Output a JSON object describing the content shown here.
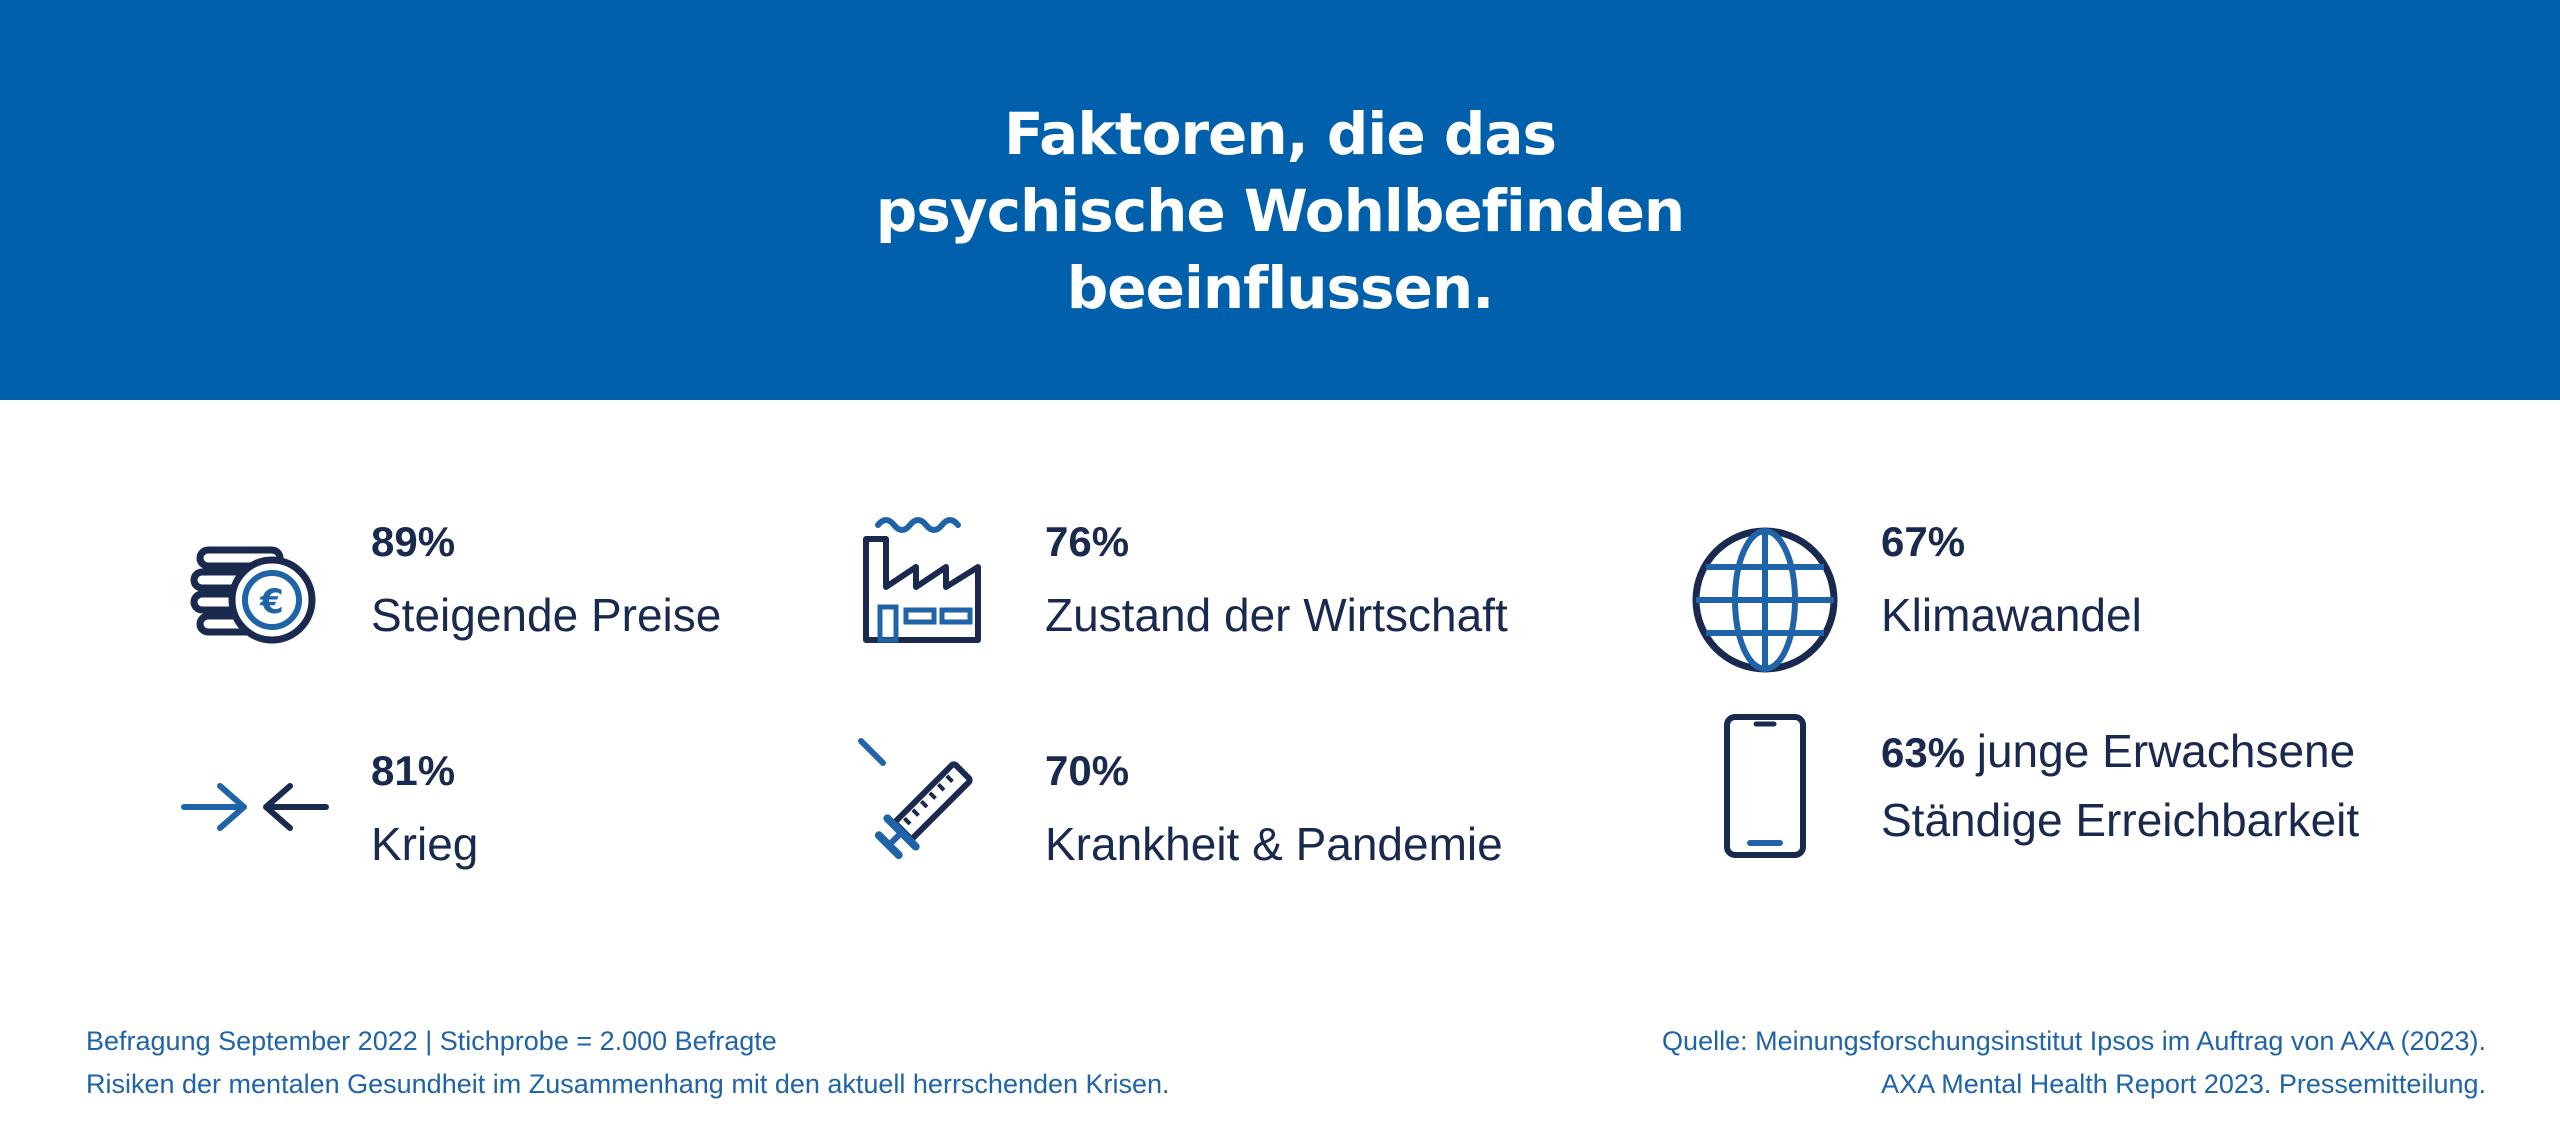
{
  "title_lines": [
    "Faktoren, die das",
    "psychische Wohlbefinden",
    "beeinflussen."
  ],
  "stats": [
    {
      "percent": "89%",
      "label": "Steigende Preise",
      "icon": "euro-coins-icon"
    },
    {
      "percent": "76%",
      "label": "Zustand der Wirtschaft",
      "icon": "factory-icon"
    },
    {
      "percent": "67%",
      "label": "Klimawandel",
      "icon": "globe-icon"
    },
    {
      "percent": "81%",
      "label": "Krieg",
      "icon": "arrows-converging-icon"
    },
    {
      "percent": "70%",
      "label": "Krankheit & Pandemie",
      "icon": "syringe-icon"
    },
    {
      "percent": "63%",
      "label_inline": "junge Erwachsene",
      "label": "Ständige Erreichbarkeit",
      "icon": "smartphone-icon"
    }
  ],
  "footer": {
    "left_line1": "Befragung September 2022 | Stichprobe = 2.000 Befragte",
    "left_line2": "Risiken der mentalen Gesundheit im Zusammenhang mit den aktuell herrschenden Krisen.",
    "right_line1": "Quelle: Meinungsforschungsinstitut Ipsos im Auftrag von AXA (2023).",
    "right_line2": "AXA Mental Health Report 2023. Pressemitteilung."
  },
  "colors": {
    "banner": "#0060ac",
    "dark": "#1a2a4f",
    "accent": "#1f63a8"
  }
}
